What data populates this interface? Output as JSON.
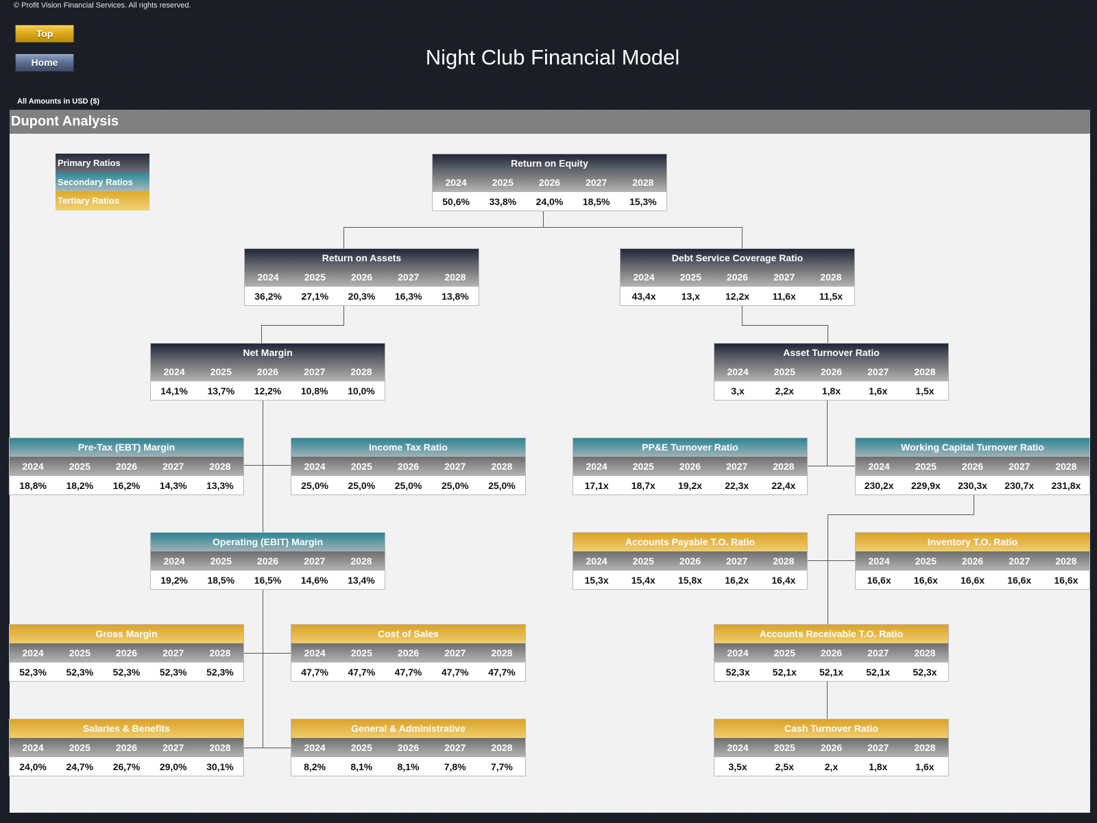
{
  "copyright": "© Profit Vision Financial Services. All rights reserved.",
  "nav": {
    "top_label": "Top",
    "home_label": "Home"
  },
  "title": "Night Club Financial Model",
  "currency_note": "All Amounts in  USD ($)",
  "section_title": "Dupont Analysis",
  "legend": {
    "primary": "Primary Ratios",
    "secondary": "Secondary Ratios",
    "tertiary": "Tertiary Ratios"
  },
  "colors": {
    "primary": "#202637",
    "secondary": "#2b8494",
    "tertiary": "#dba22a",
    "year_bar": "#808080"
  },
  "years": [
    "2024",
    "2025",
    "2026",
    "2027",
    "2028"
  ],
  "boxes": {
    "roe": {
      "title": "Return on Equity",
      "values": [
        "50,6%",
        "33,8%",
        "24,0%",
        "18,5%",
        "15,3%"
      ]
    },
    "roa": {
      "title": "Return on Assets",
      "values": [
        "36,2%",
        "27,1%",
        "20,3%",
        "16,3%",
        "13,8%"
      ]
    },
    "dscr": {
      "title": "Debt Service Coverage Ratio",
      "values": [
        "43,4x",
        "13,x",
        "12,2x",
        "11,6x",
        "11,5x"
      ]
    },
    "nm": {
      "title": "Net Margin",
      "values": [
        "14,1%",
        "13,7%",
        "12,2%",
        "10,8%",
        "10,0%"
      ]
    },
    "atr": {
      "title": "Asset Turnover Ratio",
      "values": [
        "3,x",
        "2,2x",
        "1,8x",
        "1,6x",
        "1,5x"
      ]
    },
    "ebt": {
      "title": "Pre-Tax (EBT) Margin",
      "values": [
        "18,8%",
        "18,2%",
        "16,2%",
        "14,3%",
        "13,3%"
      ]
    },
    "tax": {
      "title": "Income Tax Ratio",
      "values": [
        "25,0%",
        "25,0%",
        "25,0%",
        "25,0%",
        "25,0%"
      ]
    },
    "ppe": {
      "title": "PP&E Turnover Ratio",
      "values": [
        "17,1x",
        "18,7x",
        "19,2x",
        "22,3x",
        "22,4x"
      ]
    },
    "wct": {
      "title": "Working Capital Turnover Ratio",
      "values": [
        "230,2x",
        "229,9x",
        "230,3x",
        "230,7x",
        "231,8x"
      ]
    },
    "ebit": {
      "title": "Operating (EBIT) Margin",
      "values": [
        "19,2%",
        "18,5%",
        "16,5%",
        "14,6%",
        "13,4%"
      ]
    },
    "ap": {
      "title": "Accounts Payable T.O. Ratio",
      "values": [
        "15,3x",
        "15,4x",
        "15,8x",
        "16,2x",
        "16,4x"
      ]
    },
    "inv": {
      "title": "Inventory T.O. Ratio",
      "values": [
        "16,6x",
        "16,6x",
        "16,6x",
        "16,6x",
        "16,6x"
      ]
    },
    "gm": {
      "title": "Gross  Margin",
      "values": [
        "52,3%",
        "52,3%",
        "52,3%",
        "52,3%",
        "52,3%"
      ]
    },
    "cos": {
      "title": "Cost of Sales",
      "values": [
        "47,7%",
        "47,7%",
        "47,7%",
        "47,7%",
        "47,7%"
      ]
    },
    "ar": {
      "title": "Accounts Receivable T.O. Ratio",
      "values": [
        "52,3x",
        "52,1x",
        "52,1x",
        "52,1x",
        "52,3x"
      ]
    },
    "sal": {
      "title": "Salaries & Benefits",
      "values": [
        "24,0%",
        "24,7%",
        "26,7%",
        "29,0%",
        "30,1%"
      ]
    },
    "ga": {
      "title": "General & Administrative",
      "values": [
        "8,2%",
        "8,1%",
        "8,1%",
        "7,8%",
        "7,7%"
      ]
    },
    "cash": {
      "title": "Cash Turnover Ratio",
      "values": [
        "3,5x",
        "2,5x",
        "2,x",
        "1,8x",
        "1,6x"
      ]
    }
  }
}
